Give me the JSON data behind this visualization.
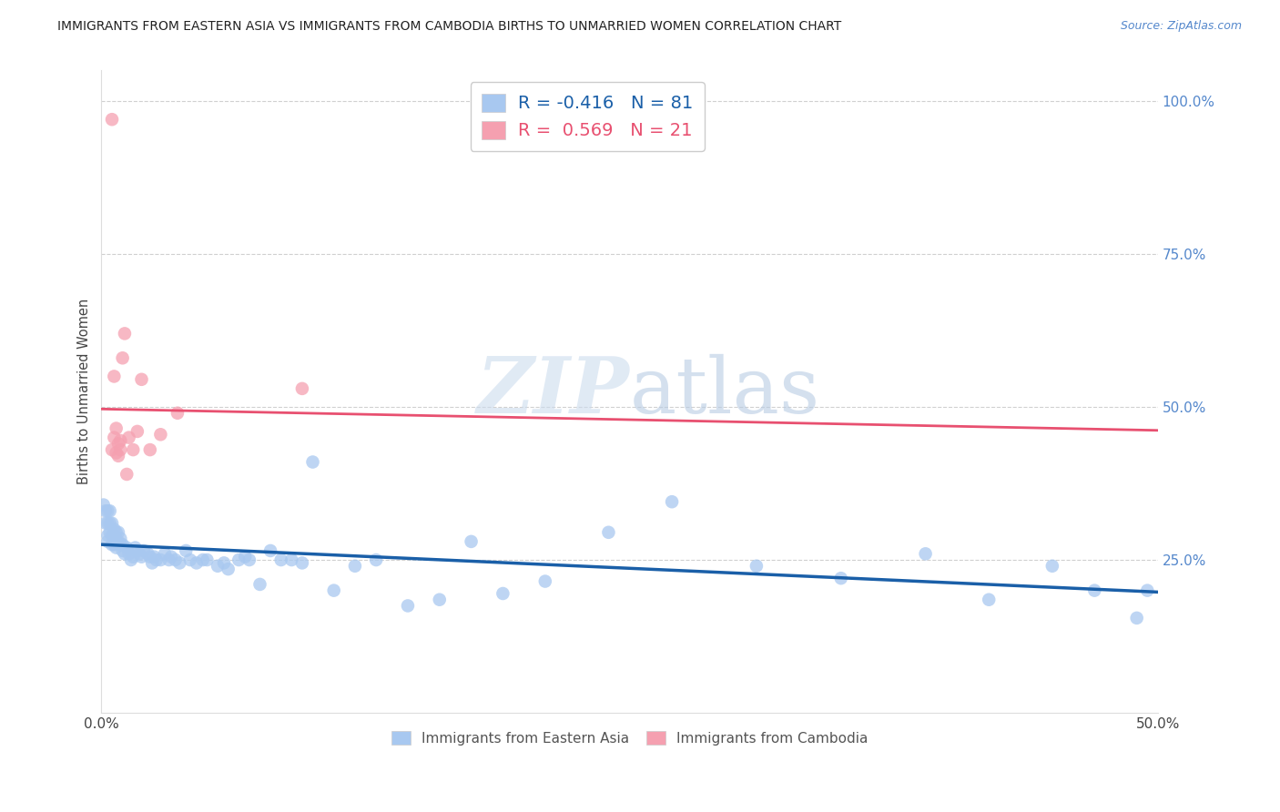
{
  "title": "IMMIGRANTS FROM EASTERN ASIA VS IMMIGRANTS FROM CAMBODIA BIRTHS TO UNMARRIED WOMEN CORRELATION CHART",
  "source": "Source: ZipAtlas.com",
  "ylabel": "Births to Unmarried Women",
  "right_yticks": [
    "100.0%",
    "75.0%",
    "50.0%",
    "25.0%"
  ],
  "right_ytick_vals": [
    1.0,
    0.75,
    0.5,
    0.25
  ],
  "watermark_zip": "ZIP",
  "watermark_atlas": "atlas",
  "legend1_label": "R = -0.416   N = 81",
  "legend2_label": "R =  0.569   N = 21",
  "series1_color": "#A8C8F0",
  "series2_color": "#F5A0B0",
  "line1_color": "#1A5FA8",
  "line2_color": "#E85070",
  "blue_x": [
    0.001,
    0.002,
    0.002,
    0.003,
    0.003,
    0.003,
    0.003,
    0.004,
    0.004,
    0.004,
    0.005,
    0.005,
    0.005,
    0.006,
    0.006,
    0.006,
    0.007,
    0.007,
    0.007,
    0.008,
    0.008,
    0.009,
    0.009,
    0.01,
    0.01,
    0.011,
    0.012,
    0.013,
    0.014,
    0.015,
    0.016,
    0.017,
    0.018,
    0.019,
    0.02,
    0.022,
    0.023,
    0.024,
    0.025,
    0.026,
    0.028,
    0.03,
    0.032,
    0.033,
    0.035,
    0.037,
    0.04,
    0.042,
    0.045,
    0.048,
    0.05,
    0.055,
    0.058,
    0.06,
    0.065,
    0.068,
    0.07,
    0.075,
    0.08,
    0.085,
    0.09,
    0.095,
    0.1,
    0.11,
    0.12,
    0.13,
    0.145,
    0.16,
    0.175,
    0.19,
    0.21,
    0.24,
    0.27,
    0.31,
    0.35,
    0.39,
    0.42,
    0.45,
    0.47,
    0.49,
    0.495
  ],
  "blue_y": [
    0.34,
    0.33,
    0.31,
    0.33,
    0.31,
    0.29,
    0.28,
    0.33,
    0.31,
    0.295,
    0.31,
    0.29,
    0.275,
    0.3,
    0.29,
    0.275,
    0.295,
    0.28,
    0.27,
    0.295,
    0.28,
    0.285,
    0.275,
    0.275,
    0.265,
    0.26,
    0.27,
    0.26,
    0.25,
    0.255,
    0.27,
    0.265,
    0.26,
    0.255,
    0.265,
    0.26,
    0.255,
    0.245,
    0.255,
    0.25,
    0.25,
    0.26,
    0.25,
    0.255,
    0.25,
    0.245,
    0.265,
    0.25,
    0.245,
    0.25,
    0.25,
    0.24,
    0.245,
    0.235,
    0.25,
    0.255,
    0.25,
    0.21,
    0.265,
    0.25,
    0.25,
    0.245,
    0.41,
    0.2,
    0.24,
    0.25,
    0.175,
    0.185,
    0.28,
    0.195,
    0.215,
    0.295,
    0.345,
    0.24,
    0.22,
    0.26,
    0.185,
    0.24,
    0.2,
    0.155,
    0.2
  ],
  "pink_x": [
    0.005,
    0.005,
    0.006,
    0.006,
    0.007,
    0.007,
    0.008,
    0.008,
    0.009,
    0.009,
    0.01,
    0.011,
    0.012,
    0.013,
    0.015,
    0.017,
    0.019,
    0.023,
    0.028,
    0.036,
    0.095
  ],
  "pink_y": [
    0.97,
    0.43,
    0.45,
    0.55,
    0.465,
    0.425,
    0.44,
    0.42,
    0.43,
    0.445,
    0.58,
    0.62,
    0.39,
    0.45,
    0.43,
    0.46,
    0.545,
    0.43,
    0.455,
    0.49,
    0.53
  ],
  "xlim": [
    0.0,
    0.5
  ],
  "ylim": [
    0.0,
    1.05
  ],
  "line1_x_start": 0.0,
  "line1_x_end": 0.5,
  "line2_x_start": 0.0,
  "line2_x_end": 0.5
}
